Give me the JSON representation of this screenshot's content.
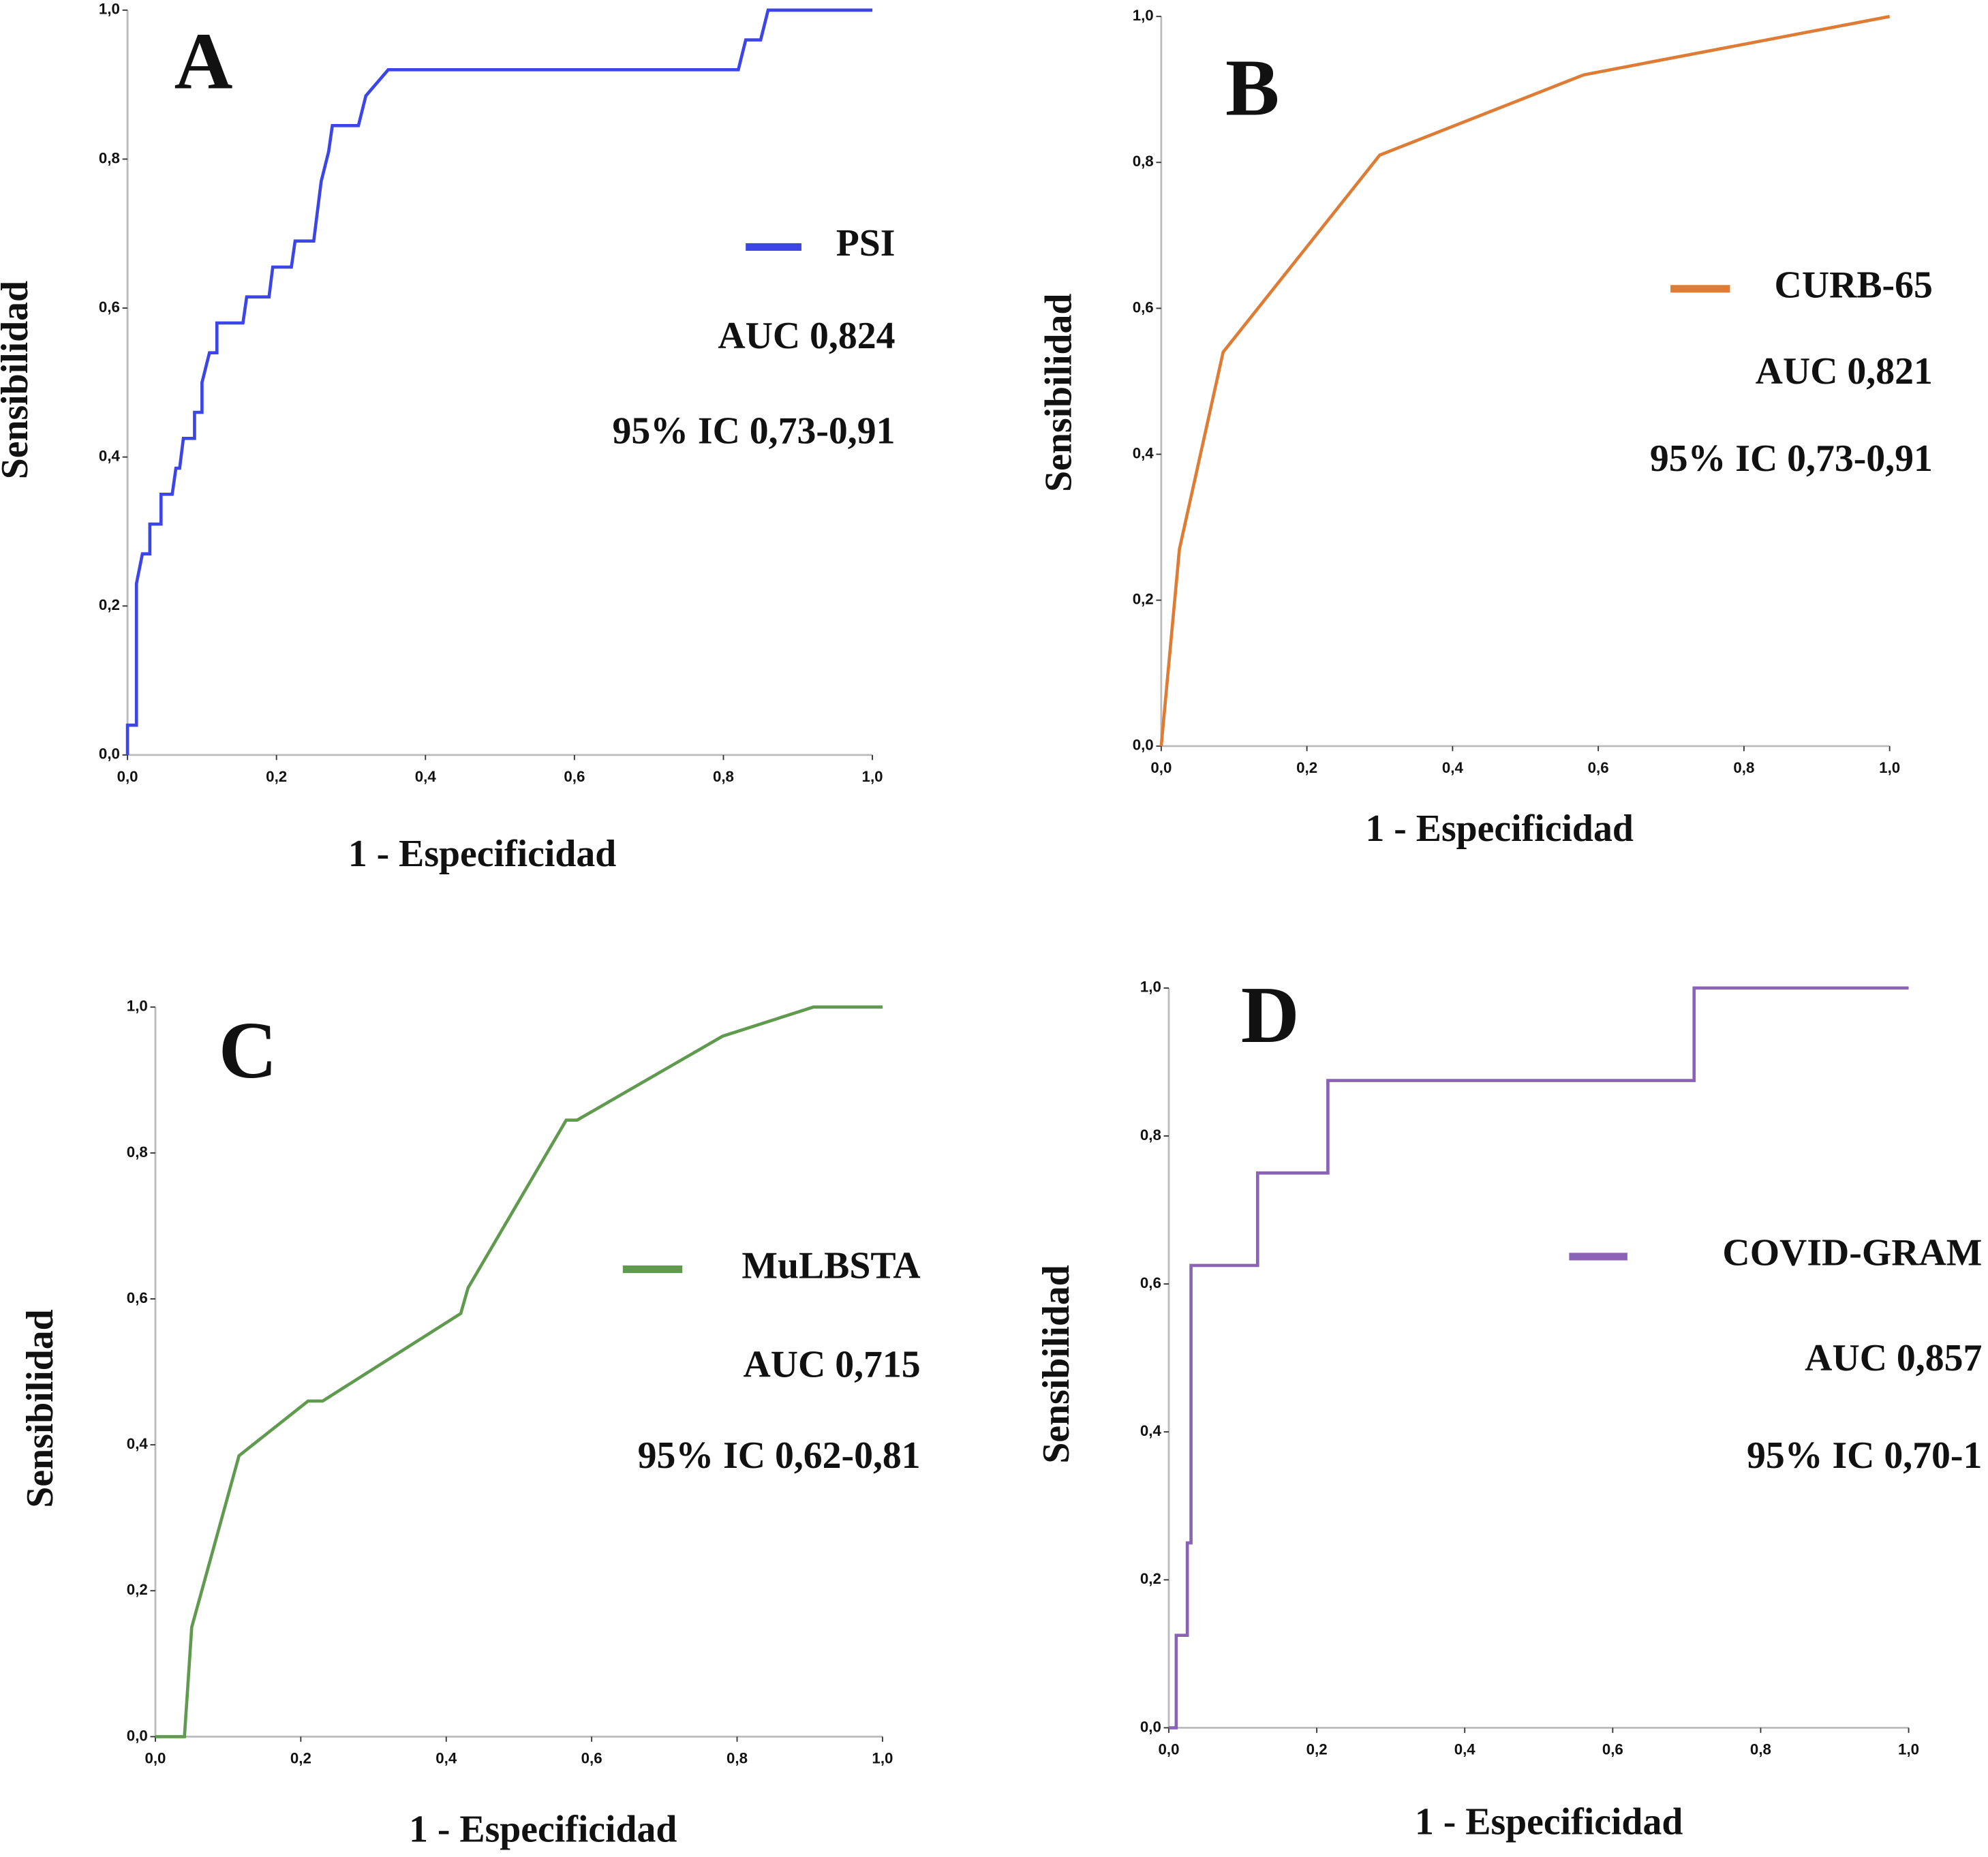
{
  "chart_data": [
    {
      "type": "line",
      "panel": "A",
      "xlabel": "1 - Especificidad",
      "ylabel": "Sensibilidad",
      "xlim": [
        0,
        1
      ],
      "ylim": [
        0,
        1
      ],
      "xticks": [
        {
          "value": 0,
          "label": "0,0"
        },
        {
          "value": 0.2,
          "label": "0,2"
        },
        {
          "value": 0.4,
          "label": "0,4"
        },
        {
          "value": 0.6,
          "label": "0,6"
        },
        {
          "value": 0.8,
          "label": "0,8"
        },
        {
          "value": 1,
          "label": "1,0"
        }
      ],
      "yticks": [
        {
          "value": 0,
          "label": "0,0"
        },
        {
          "value": 0.2,
          "label": "0,2"
        },
        {
          "value": 0.4,
          "label": "0,4"
        },
        {
          "value": 0.6,
          "label": "0,6"
        },
        {
          "value": 0.8,
          "label": "0,8"
        },
        {
          "value": 1,
          "label": "1,0"
        }
      ],
      "x": [
        0,
        0,
        0.012,
        0.012,
        0.02,
        0.03,
        0.03,
        0.045,
        0.045,
        0.06,
        0.065,
        0.07,
        0.075,
        0.09,
        0.09,
        0.1,
        0.1,
        0.11,
        0.12,
        0.12,
        0.155,
        0.16,
        0.19,
        0.195,
        0.22,
        0.225,
        0.25,
        0.26,
        0.27,
        0.275,
        0.31,
        0.32,
        0.35,
        0.82,
        0.83,
        0.85,
        0.86,
        1
      ],
      "series": [
        {
          "name": "PSI",
          "color": "#3b45e8",
          "values": [
            0,
            0.04,
            0.04,
            0.23,
            0.27,
            0.27,
            0.31,
            0.31,
            0.35,
            0.35,
            0.385,
            0.385,
            0.425,
            0.425,
            0.46,
            0.46,
            0.5,
            0.54,
            0.54,
            0.58,
            0.58,
            0.615,
            0.615,
            0.655,
            0.655,
            0.69,
            0.69,
            0.77,
            0.81,
            0.845,
            0.845,
            0.885,
            0.92,
            0.92,
            0.96,
            0.96,
            1,
            1
          ]
        }
      ],
      "annotations": [
        "AUC 0,824",
        "95% IC 0,73-0,91"
      ]
    },
    {
      "type": "line",
      "panel": "B",
      "xlabel": "1 - Especificidad",
      "ylabel": "Sensibilidad",
      "xlim": [
        0,
        1
      ],
      "ylim": [
        0,
        1
      ],
      "xticks": [
        {
          "value": 0,
          "label": "0,0"
        },
        {
          "value": 0.2,
          "label": "0,2"
        },
        {
          "value": 0.4,
          "label": "0,4"
        },
        {
          "value": 0.6,
          "label": "0,6"
        },
        {
          "value": 0.8,
          "label": "0,8"
        },
        {
          "value": 1,
          "label": "1,0"
        }
      ],
      "yticks": [
        {
          "value": 0,
          "label": "0,0"
        },
        {
          "value": 0.2,
          "label": "0,2"
        },
        {
          "value": 0.4,
          "label": "0,4"
        },
        {
          "value": 0.6,
          "label": "0,6"
        },
        {
          "value": 0.8,
          "label": "0,8"
        },
        {
          "value": 1,
          "label": "1,0"
        }
      ],
      "x": [
        0,
        0.025,
        0.085,
        0.3,
        0.58,
        1
      ],
      "series": [
        {
          "name": "CURB-65",
          "color": "#de7c35",
          "values": [
            0,
            0.27,
            0.54,
            0.81,
            0.92,
            1
          ]
        }
      ],
      "annotations": [
        "AUC 0,821",
        "95% IC 0,73-0,91"
      ]
    },
    {
      "type": "line",
      "panel": "C",
      "xlabel": "1 - Especificidad",
      "ylabel": "Sensibilidad",
      "xlim": [
        0,
        1
      ],
      "ylim": [
        0,
        1
      ],
      "xticks": [
        {
          "value": 0,
          "label": "0,0"
        },
        {
          "value": 0.2,
          "label": "0,2"
        },
        {
          "value": 0.4,
          "label": "0,4"
        },
        {
          "value": 0.6,
          "label": "0,6"
        },
        {
          "value": 0.8,
          "label": "0,8"
        },
        {
          "value": 1,
          "label": "1,0"
        }
      ],
      "yticks": [
        {
          "value": 0,
          "label": "0,0"
        },
        {
          "value": 0.2,
          "label": "0,2"
        },
        {
          "value": 0.4,
          "label": "0,4"
        },
        {
          "value": 0.6,
          "label": "0,6"
        },
        {
          "value": 0.8,
          "label": "0,8"
        },
        {
          "value": 1,
          "label": "1,0"
        }
      ],
      "x": [
        0,
        0.04,
        0.05,
        0.115,
        0.21,
        0.23,
        0.42,
        0.43,
        0.565,
        0.58,
        0.78,
        0.905,
        1
      ],
      "series": [
        {
          "name": "MuLBSTA",
          "color": "#5f9a4e",
          "values": [
            0,
            0,
            0.15,
            0.385,
            0.46,
            0.46,
            0.58,
            0.615,
            0.845,
            0.845,
            0.96,
            1,
            1
          ]
        }
      ],
      "annotations": [
        "AUC 0,715",
        "95% IC 0,62-0,81"
      ]
    },
    {
      "type": "line",
      "panel": "D",
      "xlabel": "1 - Especificidad",
      "ylabel": "Sensibilidad",
      "xlim": [
        0,
        1
      ],
      "ylim": [
        0,
        1
      ],
      "xticks": [
        {
          "value": 0,
          "label": "0,0"
        },
        {
          "value": 0.2,
          "label": "0,2"
        },
        {
          "value": 0.4,
          "label": "0,4"
        },
        {
          "value": 0.6,
          "label": "0,6"
        },
        {
          "value": 0.8,
          "label": "0,8"
        },
        {
          "value": 1,
          "label": "1,0"
        }
      ],
      "yticks": [
        {
          "value": 0,
          "label": "0,0"
        },
        {
          "value": 0.2,
          "label": "0,2"
        },
        {
          "value": 0.4,
          "label": "0,4"
        },
        {
          "value": 0.6,
          "label": "0,6"
        },
        {
          "value": 0.8,
          "label": "0,8"
        },
        {
          "value": 1,
          "label": "1,0"
        }
      ],
      "x": [
        0,
        0.01,
        0.01,
        0.025,
        0.025,
        0.03,
        0.03,
        0.12,
        0.12,
        0.215,
        0.215,
        0.71,
        0.71,
        1
      ],
      "series": [
        {
          "name": "COVID-GRAM",
          "color": "#8a62b8",
          "values": [
            0,
            0,
            0.125,
            0.125,
            0.25,
            0.25,
            0.625,
            0.625,
            0.75,
            0.75,
            0.875,
            0.875,
            1,
            1
          ]
        }
      ],
      "annotations": [
        "AUC 0,857",
        "95% IC 0,70-1"
      ]
    }
  ]
}
